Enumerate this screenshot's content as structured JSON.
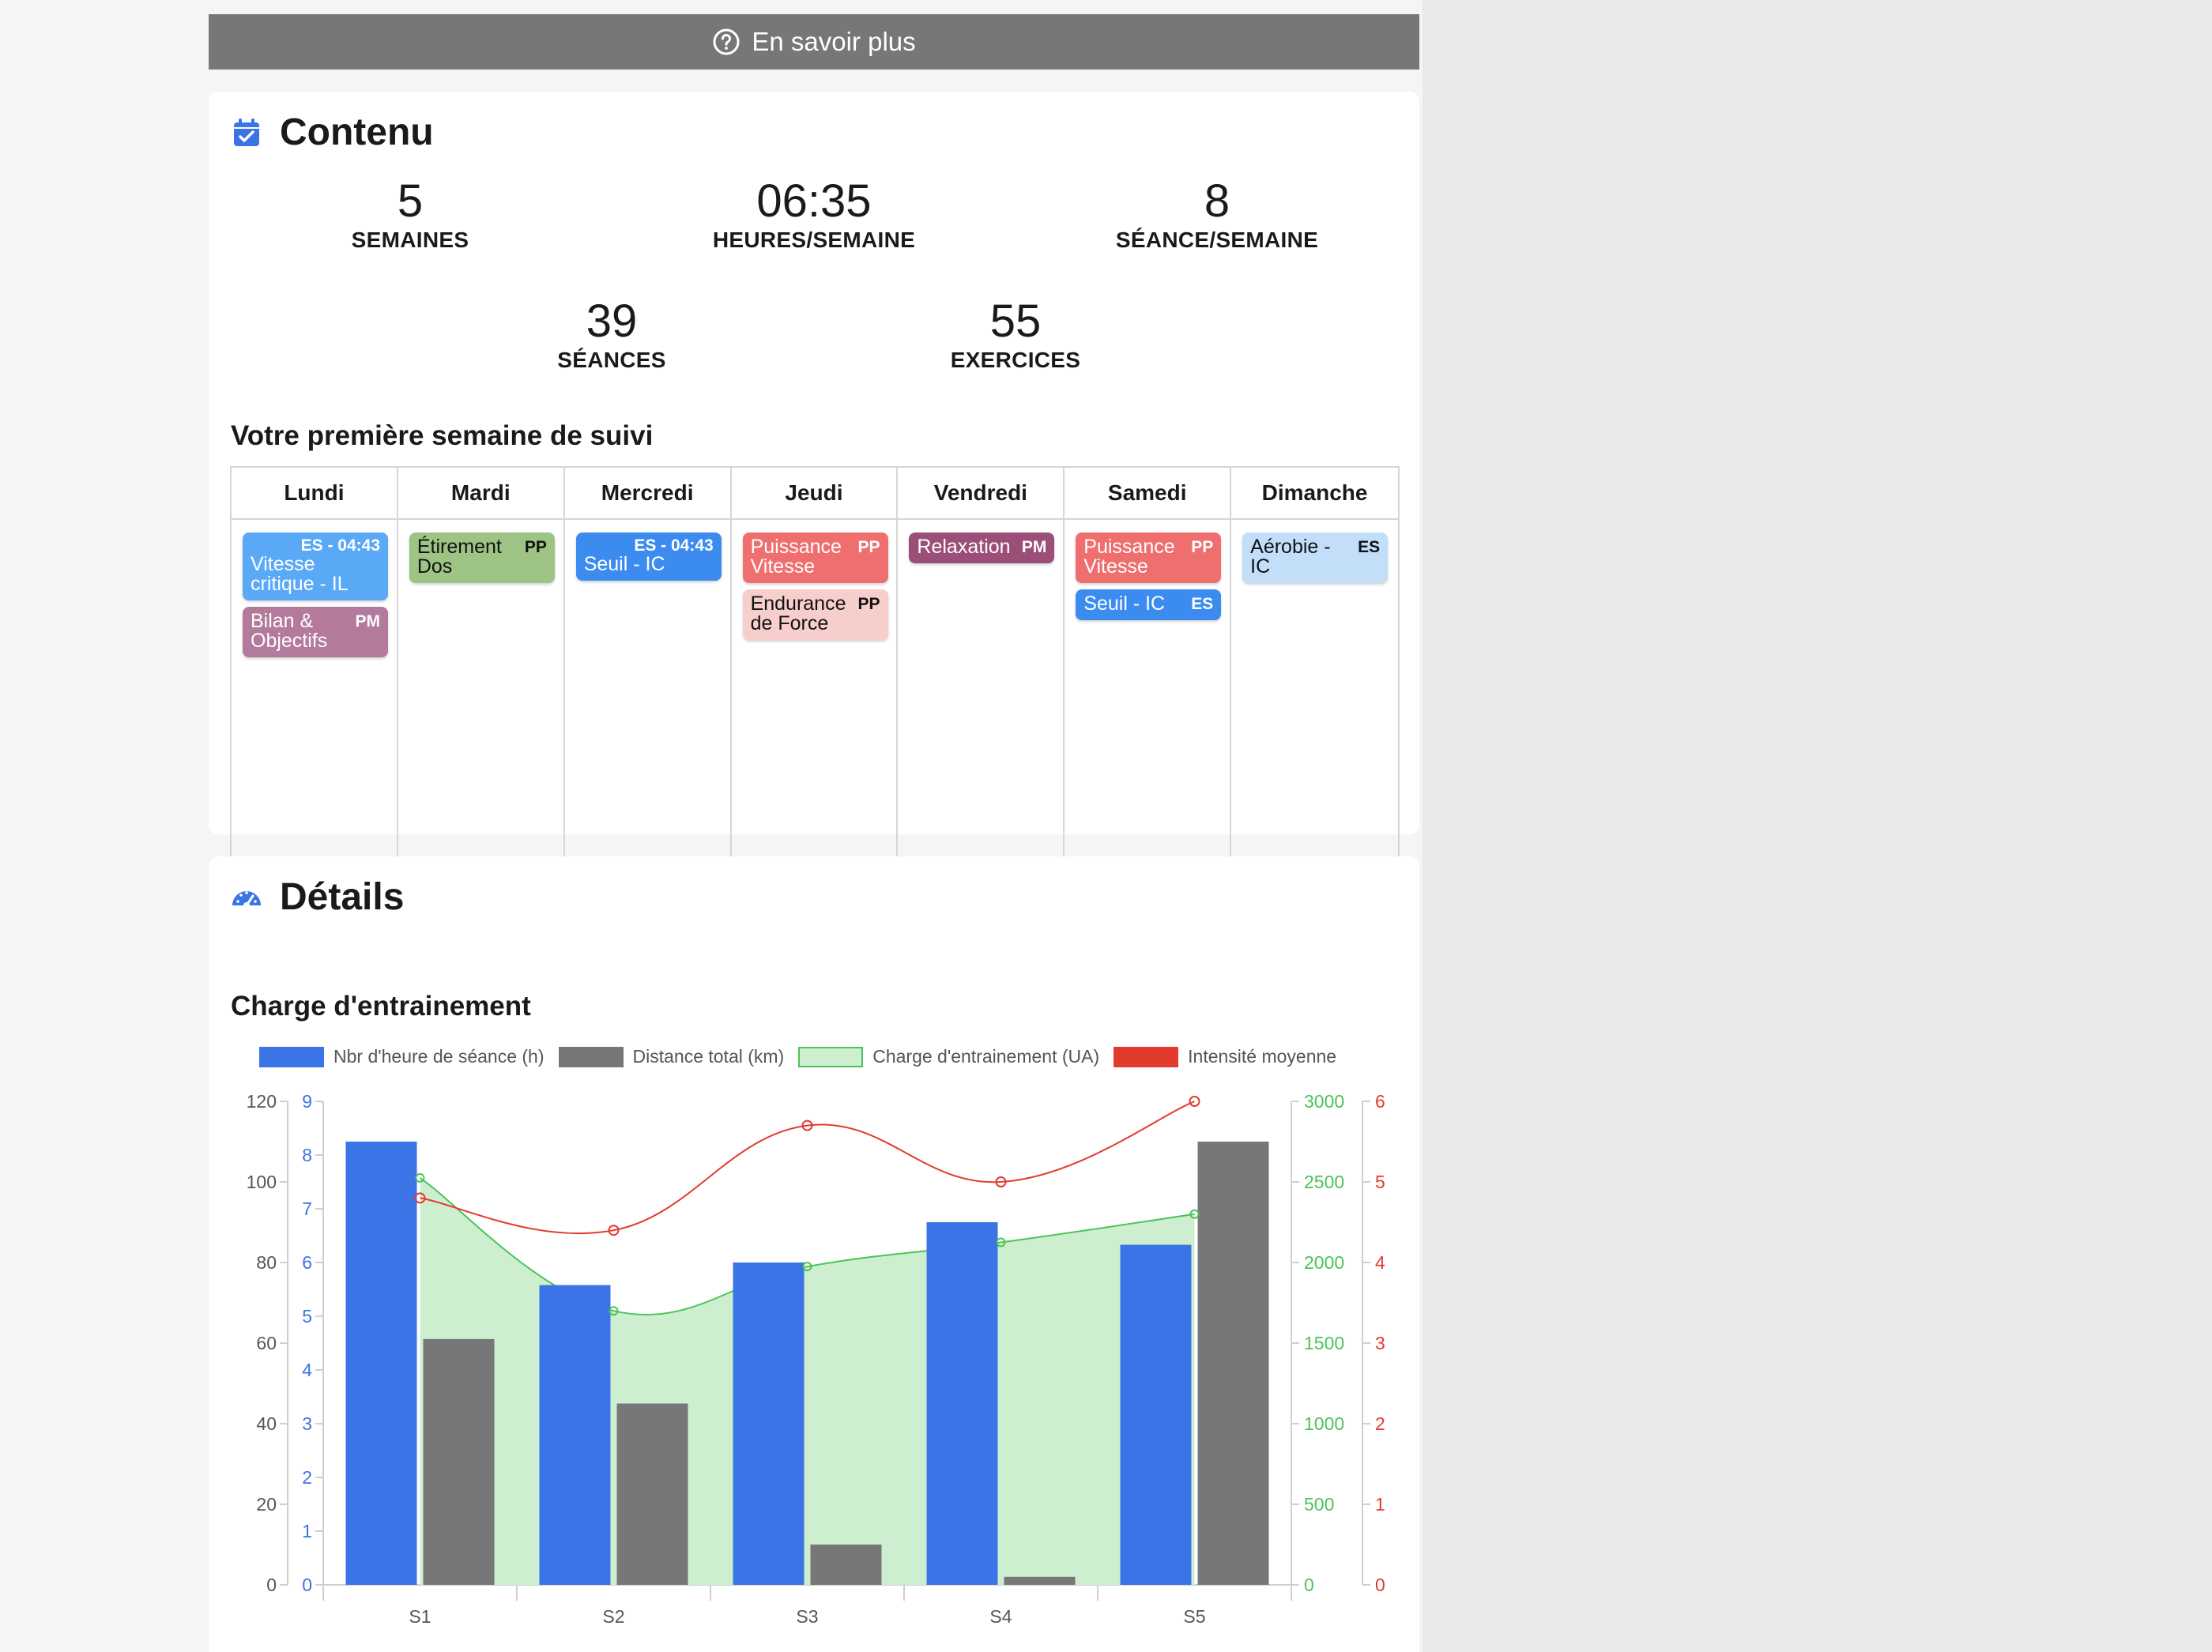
{
  "info_bar": {
    "label": "En savoir plus",
    "icon": "question-circle-icon"
  },
  "contenu": {
    "title": "Contenu",
    "icon": "calendar-check-icon",
    "stats": [
      {
        "value": "5",
        "label": "SEMAINES"
      },
      {
        "value": "06:35",
        "label": "HEURES/SEMAINE"
      },
      {
        "value": "8",
        "label": "SÉANCE/SEMAINE"
      },
      {
        "value": "39",
        "label": "SÉANCES"
      },
      {
        "value": "55",
        "label": "EXERCICES"
      }
    ],
    "week_title": "Votre première semaine de suivi",
    "days": [
      "Lundi",
      "Mardi",
      "Mercredi",
      "Jeudi",
      "Vendredi",
      "Samedi",
      "Dimanche"
    ],
    "events": [
      {
        "day": 0,
        "tag": "ES - 04:43",
        "text": "Vitesse critique - IL",
        "bg": "#5aa9f7",
        "fg": "#ffffff"
      },
      {
        "day": 0,
        "tag": "PM",
        "text": "Bilan & Objectifs",
        "bg": "#b47a9c",
        "fg": "#ffffff"
      },
      {
        "day": 1,
        "tag": "PP",
        "text": "Étirement Dos",
        "bg": "#9dc484",
        "fg": "#111111"
      },
      {
        "day": 2,
        "tag": "ES - 04:43",
        "text": "Seuil - IC",
        "bg": "#3c8cf0",
        "fg": "#ffffff"
      },
      {
        "day": 3,
        "tag": "PP",
        "text": "Puissance Vitesse",
        "bg": "#ef6e6e",
        "fg": "#ffffff"
      },
      {
        "day": 3,
        "tag": "PP",
        "text": "Endurance de Force",
        "bg": "#f6cfcc",
        "fg": "#111111"
      },
      {
        "day": 4,
        "tag": "PM",
        "text": "Relaxation",
        "bg": "#9b4f78",
        "fg": "#ffffff"
      },
      {
        "day": 5,
        "tag": "PP",
        "text": "Puissance Vitesse",
        "bg": "#ef6e6e",
        "fg": "#ffffff"
      },
      {
        "day": 5,
        "tag": "ES",
        "text": "Seuil - IC",
        "bg": "#3c8cf0",
        "fg": "#ffffff"
      },
      {
        "day": 6,
        "tag": "ES",
        "text": "Aérobie - IC",
        "bg": "#c3def9",
        "fg": "#111111"
      }
    ]
  },
  "details": {
    "title": "Détails",
    "icon": "tachometer-icon",
    "chart_title": "Charge d'entrainement"
  },
  "chart_data": {
    "type": "bar",
    "categories": [
      "S1",
      "S2",
      "S3",
      "S4",
      "S5"
    ],
    "series": [
      {
        "name": "Nbr d'heure de séance (h)",
        "type": "bar",
        "axis": "y-left-blue",
        "color": "#3a74e6",
        "values": [
          8.25,
          5.58,
          6.0,
          6.75,
          6.33
        ]
      },
      {
        "name": "Distance total (km)",
        "type": "bar",
        "axis": "y-left-black",
        "color": "#777777",
        "values": [
          61,
          45,
          10,
          2,
          110
        ]
      },
      {
        "name": "Charge d'entrainement (UA)",
        "type": "area",
        "axis": "y-right-green",
        "color": "#4cc35a",
        "fill": "#cdefcf",
        "values": [
          2525,
          1700,
          1975,
          2125,
          2300
        ]
      },
      {
        "name": "Intensité moyenne",
        "type": "line",
        "axis": "y-right-red",
        "color": "#e33a2e",
        "values": [
          4.8,
          4.4,
          5.7,
          5.0,
          6.0
        ]
      }
    ],
    "axes": {
      "y-left-black": {
        "range": [
          0,
          120
        ],
        "ticks": [
          "0",
          "20",
          "40",
          "60",
          "80",
          "100",
          "120"
        ],
        "color": "#555555"
      },
      "y-left-blue": {
        "range": [
          0,
          9
        ],
        "ticks": [
          "0",
          "1",
          "2",
          "3",
          "4",
          "5",
          "6",
          "7",
          "8",
          "9"
        ],
        "color": "#3a74e6"
      },
      "y-right-green": {
        "range": [
          0,
          3000
        ],
        "ticks": [
          "0",
          "500",
          "1000",
          "1500",
          "2000",
          "2500",
          "3000"
        ],
        "color": "#4cc35a"
      },
      "y-right-red": {
        "range": [
          0,
          6
        ],
        "ticks": [
          "0",
          "1",
          "2",
          "3",
          "4",
          "5",
          "6"
        ],
        "color": "#e33a2e"
      }
    },
    "legend_position": "top"
  }
}
